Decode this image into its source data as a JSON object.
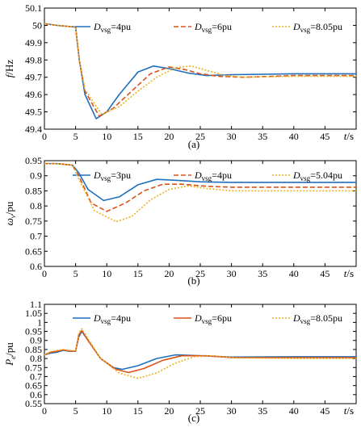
{
  "colors": {
    "blue": "#1f6fbf",
    "red": "#d95319",
    "yellow": "#edb120"
  },
  "chart_data": [
    {
      "type": "line",
      "caption": "(a)",
      "ylabel_main": "f",
      "ylabel_unit": "/Hz",
      "xlabel_main": "t",
      "xlabel_unit": "/s",
      "xlim": [
        0,
        50
      ],
      "ylim": [
        49.4,
        50.1
      ],
      "xticks": [
        0,
        5,
        10,
        15,
        20,
        25,
        30,
        35,
        40,
        45
      ],
      "yticks": [
        49.4,
        49.5,
        49.6,
        49.7,
        49.8,
        49.9,
        50,
        50.1
      ],
      "yticklabels": [
        "49.4",
        "49.5",
        "49.6",
        "49.7",
        "49.8",
        "49.9",
        "50",
        "50.1"
      ],
      "series": [
        {
          "name_main": "D",
          "name_sub": "vsg",
          "name_tail": "=4pu",
          "color": "#1f6fbf",
          "dash": "solid",
          "points": [
            [
              0,
              50.01
            ],
            [
              2,
              50.0
            ],
            [
              5,
              49.99
            ],
            [
              5.6,
              49.8
            ],
            [
              6.5,
              49.6
            ],
            [
              8.3,
              49.46
            ],
            [
              10,
              49.5
            ],
            [
              12,
              49.6
            ],
            [
              15,
              49.73
            ],
            [
              17.5,
              49.765
            ],
            [
              20,
              49.75
            ],
            [
              23,
              49.725
            ],
            [
              26,
              49.71
            ],
            [
              30,
              49.715
            ],
            [
              40,
              49.72
            ],
            [
              50,
              49.72
            ]
          ]
        },
        {
          "name_main": "D",
          "name_sub": "vsg",
          "name_tail": "=6pu",
          "color": "#d95319",
          "dash": "dashed",
          "points": [
            [
              0,
              50.01
            ],
            [
              2,
              50.0
            ],
            [
              5,
              49.99
            ],
            [
              5.6,
              49.8
            ],
            [
              6.5,
              49.62
            ],
            [
              8.8,
              49.475
            ],
            [
              11,
              49.52
            ],
            [
              14,
              49.62
            ],
            [
              17,
              49.72
            ],
            [
              20,
              49.76
            ],
            [
              22.5,
              49.745
            ],
            [
              25,
              49.72
            ],
            [
              28,
              49.705
            ],
            [
              32,
              49.7
            ],
            [
              40,
              49.71
            ],
            [
              50,
              49.71
            ]
          ]
        },
        {
          "name_main": "D",
          "name_sub": "vsg",
          "name_tail": "=8.05pu",
          "color": "#edb120",
          "dash": "dotted",
          "points": [
            [
              0,
              50.01
            ],
            [
              2,
              50.0
            ],
            [
              5,
              49.99
            ],
            [
              5.6,
              49.8
            ],
            [
              6.5,
              49.63
            ],
            [
              9.2,
              49.485
            ],
            [
              12,
              49.53
            ],
            [
              15,
              49.62
            ],
            [
              18,
              49.7
            ],
            [
              21,
              49.755
            ],
            [
              23.5,
              49.765
            ],
            [
              26,
              49.74
            ],
            [
              29,
              49.71
            ],
            [
              32,
              49.7
            ],
            [
              40,
              49.705
            ],
            [
              50,
              49.705
            ]
          ]
        }
      ]
    },
    {
      "type": "line",
      "caption": "(b)",
      "ylabel_main": "ω",
      "ylabel_sub": "v",
      "ylabel_unit": "/pu",
      "xlabel_main": "t",
      "xlabel_unit": "/s",
      "xlim": [
        0,
        50
      ],
      "ylim": [
        0.6,
        0.95
      ],
      "xticks": [
        0,
        5,
        10,
        15,
        20,
        25,
        30,
        35,
        40,
        45
      ],
      "yticks": [
        0.6,
        0.65,
        0.7,
        0.75,
        0.8,
        0.85,
        0.9,
        0.95
      ],
      "yticklabels": [
        "0.6",
        "0.65",
        "0.7",
        "0.75",
        "0.8",
        "0.85",
        "0.9",
        "0.95"
      ],
      "series": [
        {
          "name_main": "D",
          "name_sub": "vsg",
          "name_tail": "=3pu",
          "color": "#1f6fbf",
          "dash": "solid",
          "points": [
            [
              0,
              0.94
            ],
            [
              2,
              0.94
            ],
            [
              4.5,
              0.935
            ],
            [
              5.5,
              0.91
            ],
            [
              7,
              0.855
            ],
            [
              9.5,
              0.818
            ],
            [
              12,
              0.83
            ],
            [
              15,
              0.87
            ],
            [
              18,
              0.888
            ],
            [
              21,
              0.885
            ],
            [
              25,
              0.88
            ],
            [
              30,
              0.878
            ],
            [
              40,
              0.878
            ],
            [
              50,
              0.878
            ]
          ]
        },
        {
          "name_main": "D",
          "name_sub": "vsg",
          "name_tail": "=4pu",
          "color": "#d95319",
          "dash": "dashed",
          "points": [
            [
              0,
              0.94
            ],
            [
              2,
              0.94
            ],
            [
              4.5,
              0.935
            ],
            [
              5.5,
              0.9
            ],
            [
              7.5,
              0.81
            ],
            [
              10,
              0.782
            ],
            [
              13,
              0.81
            ],
            [
              16,
              0.85
            ],
            [
              19,
              0.872
            ],
            [
              22,
              0.872
            ],
            [
              26,
              0.865
            ],
            [
              30,
              0.862
            ],
            [
              40,
              0.862
            ],
            [
              50,
              0.862
            ]
          ]
        },
        {
          "name_main": "D",
          "name_sub": "vsg",
          "name_tail": "=5.04pu",
          "color": "#edb120",
          "dash": "dotted",
          "points": [
            [
              0,
              0.94
            ],
            [
              2,
              0.94
            ],
            [
              4.5,
              0.935
            ],
            [
              5.5,
              0.89
            ],
            [
              8,
              0.785
            ],
            [
              11.5,
              0.748
            ],
            [
              14,
              0.765
            ],
            [
              17,
              0.82
            ],
            [
              20,
              0.855
            ],
            [
              23,
              0.866
            ],
            [
              26,
              0.858
            ],
            [
              30,
              0.85
            ],
            [
              40,
              0.85
            ],
            [
              50,
              0.85
            ]
          ]
        }
      ]
    },
    {
      "type": "line",
      "caption": "(c)",
      "ylabel_main": "P",
      "ylabel_sub": "e",
      "ylabel_unit": "/pu",
      "xlabel_main": "t",
      "xlabel_unit": "/s",
      "xlim": [
        0,
        50
      ],
      "ylim": [
        0.55,
        1.1
      ],
      "xticks": [
        0,
        5,
        10,
        15,
        20,
        25,
        30,
        35,
        40,
        45
      ],
      "yticks": [
        0.55,
        0.6,
        0.65,
        0.7,
        0.75,
        0.8,
        0.85,
        0.9,
        0.95,
        1,
        1.05,
        1.1
      ],
      "yticklabels": [
        "0.55",
        "0.6",
        "0.65",
        "0.7",
        "0.75",
        "0.8",
        "0.85",
        "0.9",
        "0.95",
        "1",
        "1.05",
        "1.1"
      ],
      "series": [
        {
          "name_main": "D",
          "name_sub": "vsg",
          "name_tail": "=4pu",
          "color": "#1f6fbf",
          "dash": "solid",
          "points": [
            [
              0,
              0.82
            ],
            [
              1,
              0.83
            ],
            [
              2,
              0.835
            ],
            [
              3,
              0.845
            ],
            [
              4,
              0.84
            ],
            [
              5,
              0.84
            ],
            [
              5.5,
              0.92
            ],
            [
              6,
              0.95
            ],
            [
              7,
              0.9
            ],
            [
              9,
              0.8
            ],
            [
              11,
              0.75
            ],
            [
              12.5,
              0.74
            ],
            [
              15,
              0.76
            ],
            [
              18,
              0.8
            ],
            [
              21,
              0.82
            ],
            [
              25,
              0.815
            ],
            [
              30,
              0.808
            ],
            [
              40,
              0.81
            ],
            [
              50,
              0.81
            ]
          ]
        },
        {
          "name_main": "D",
          "name_sub": "vsg",
          "name_tail": "=6pu",
          "color": "#d95319",
          "dash": "solid",
          "points": [
            [
              0,
              0.82
            ],
            [
              1,
              0.835
            ],
            [
              2,
              0.84
            ],
            [
              3,
              0.848
            ],
            [
              4,
              0.842
            ],
            [
              5,
              0.84
            ],
            [
              5.5,
              0.93
            ],
            [
              6,
              0.955
            ],
            [
              7,
              0.9
            ],
            [
              9,
              0.8
            ],
            [
              11.5,
              0.74
            ],
            [
              13.5,
              0.722
            ],
            [
              16,
              0.745
            ],
            [
              19,
              0.79
            ],
            [
              22,
              0.815
            ],
            [
              26,
              0.815
            ],
            [
              30,
              0.805
            ],
            [
              40,
              0.805
            ],
            [
              50,
              0.805
            ]
          ]
        },
        {
          "name_main": "D",
          "name_sub": "vsg",
          "name_tail": "=8.05pu",
          "color": "#edb120",
          "dash": "dotted",
          "points": [
            [
              0,
              0.82
            ],
            [
              1,
              0.838
            ],
            [
              2,
              0.845
            ],
            [
              3,
              0.85
            ],
            [
              4,
              0.845
            ],
            [
              5,
              0.842
            ],
            [
              5.5,
              0.94
            ],
            [
              6,
              0.965
            ],
            [
              7,
              0.91
            ],
            [
              9,
              0.8
            ],
            [
              12,
              0.72
            ],
            [
              15,
              0.69
            ],
            [
              18,
              0.72
            ],
            [
              21,
              0.775
            ],
            [
              24,
              0.81
            ],
            [
              27,
              0.815
            ],
            [
              31,
              0.803
            ],
            [
              40,
              0.8
            ],
            [
              50,
              0.8
            ]
          ]
        }
      ]
    }
  ]
}
